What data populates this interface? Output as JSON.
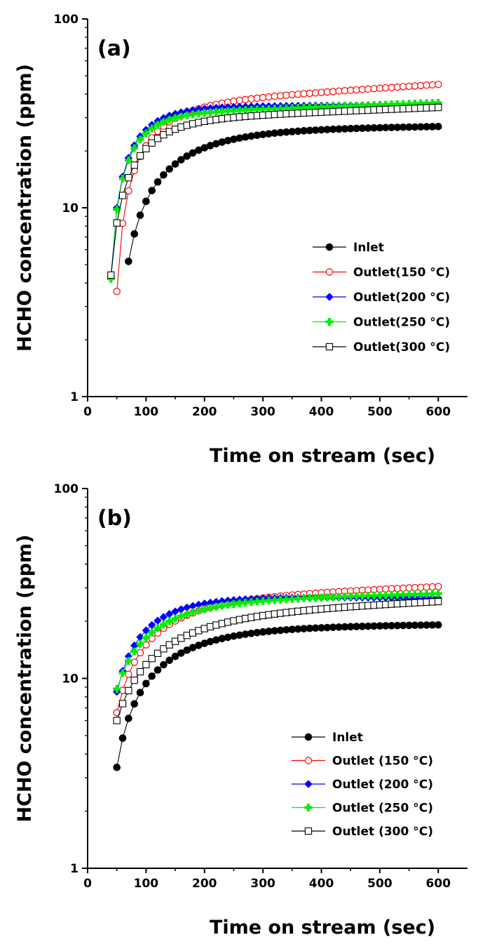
{
  "chart_data": [
    {
      "type": "line",
      "panel_label": "(a)",
      "xlabel": "Time on stream (sec)",
      "ylabel": "HCHO concentration (ppm)",
      "xlim": [
        0,
        650
      ],
      "ylim": [
        1,
        100
      ],
      "yscale": "log",
      "xticks": [
        0,
        100,
        200,
        300,
        400,
        500,
        600
      ],
      "xtick_labels": [
        "0",
        "100",
        "200",
        "300",
        "400",
        "500",
        "600"
      ],
      "yticks": [
        1,
        10,
        100
      ],
      "ytick_labels": [
        "1",
        "10",
        "100"
      ],
      "legend_position": "center-right",
      "series": [
        {
          "name": "Inlet",
          "marker": "filled-circle",
          "color": "#000000",
          "start": 70,
          "v0": 5.2,
          "vend": 27,
          "rise": 0.105,
          "drift": 1.05
        },
        {
          "name": "Outlet(150 °C)",
          "marker": "open-circle",
          "color": "#ff0000",
          "start": 50,
          "v0": 3.6,
          "vend": 45,
          "rise": 0.16,
          "drift": 1.33
        },
        {
          "name": "Outlet(200 °C)",
          "marker": "filled-diamond",
          "color": "#0000ff",
          "start": 40,
          "v0": 4.3,
          "vend": 35,
          "rise": 0.21,
          "drift": 1.02
        },
        {
          "name": "Outlet(250 °C)",
          "marker": "plus",
          "color": "#00ee00",
          "start": 40,
          "v0": 4.2,
          "vend": 36,
          "rise": 0.23,
          "drift": 1.16
        },
        {
          "name": "Outlet(300 °C)",
          "marker": "open-square",
          "color": "#000000",
          "start": 40,
          "v0": 4.4,
          "vend": 34,
          "rise": 0.17,
          "drift": 1.18
        }
      ]
    },
    {
      "type": "line",
      "panel_label": "(b)",
      "xlabel": "Time on stream (sec)",
      "ylabel": "HCHO concentration (ppm)",
      "xlim": [
        0,
        650
      ],
      "ylim": [
        1,
        100
      ],
      "yscale": "log",
      "xticks": [
        0,
        100,
        200,
        300,
        400,
        500,
        600
      ],
      "xtick_labels": [
        "0",
        "100",
        "200",
        "300",
        "400",
        "500",
        "600"
      ],
      "yticks": [
        1,
        10,
        100
      ],
      "ytick_labels": [
        "1",
        "10",
        "100"
      ],
      "legend_position": "center-right",
      "series": [
        {
          "name": "Inlet",
          "marker": "filled-circle",
          "color": "#000000",
          "start": 50,
          "v0": 3.4,
          "vend": 19.2,
          "rise": 0.1,
          "drift": 1.04
        },
        {
          "name": "Outlet (150 °C)",
          "marker": "open-circle",
          "color": "#ff0000",
          "start": 50,
          "v0": 6.6,
          "vend": 30.5,
          "rise": 0.11,
          "drift": 1.2
        },
        {
          "name": "Outlet (200 °C)",
          "marker": "filled-diamond",
          "color": "#0000ff",
          "start": 50,
          "v0": 8.5,
          "vend": 26.5,
          "rise": 0.14,
          "drift": 0.97
        },
        {
          "name": "Outlet (250 °C)",
          "marker": "plus",
          "color": "#00ee00",
          "start": 50,
          "v0": 8.8,
          "vend": 28,
          "rise": 0.12,
          "drift": 1.12
        },
        {
          "name": "Outlet (300 °C)",
          "marker": "open-square",
          "color": "#000000",
          "start": 50,
          "v0": 6.0,
          "vend": 25.5,
          "rise": 0.09,
          "drift": 1.22
        }
      ]
    }
  ]
}
